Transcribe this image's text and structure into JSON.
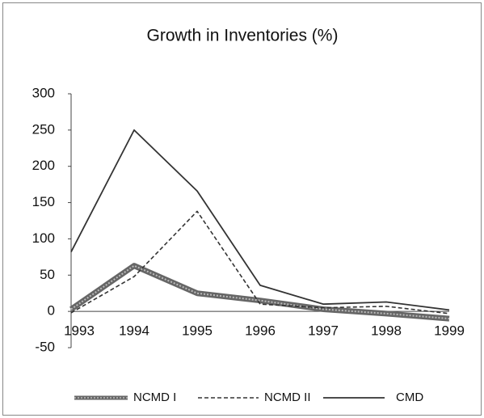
{
  "chart_data": {
    "type": "line",
    "title": "Growth in Inventories (%)",
    "categories": [
      "1993",
      "1994",
      "1995",
      "1996",
      "1997",
      "1998",
      "1999"
    ],
    "series": [
      {
        "name": "NCMD I",
        "color": "#666666",
        "values": [
          3,
          63,
          25,
          15,
          3,
          -3,
          -10
        ]
      },
      {
        "name": "NCMD II",
        "color": "#333333",
        "values": [
          -2,
          48,
          138,
          10,
          5,
          7,
          -3
        ]
      },
      {
        "name": "CMD",
        "color": "#333333",
        "values": [
          82,
          250,
          166,
          36,
          10,
          13,
          2
        ]
      }
    ],
    "ylim": [
      -50,
      300
    ],
    "yticks": [
      -50,
      0,
      50,
      100,
      150,
      200,
      250,
      300
    ],
    "grid": false,
    "legend": "bottom"
  }
}
